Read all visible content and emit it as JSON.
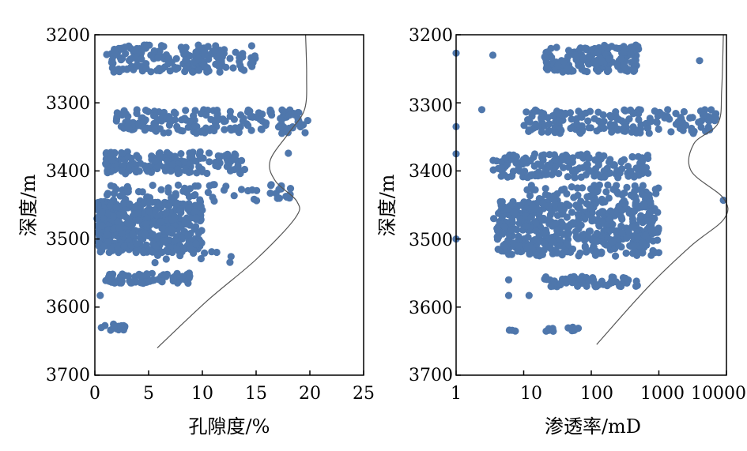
{
  "chart_data": [
    {
      "type": "scatter",
      "xlabel": "孔隙度/%",
      "ylabel": "深度/m",
      "xscale": "linear",
      "xlim": [
        0,
        25
      ],
      "ylim": [
        3700,
        3200
      ],
      "y_inverted": true,
      "xticks": [
        "0",
        "5",
        "10",
        "15",
        "20",
        "25"
      ],
      "yticks": [
        "3200",
        "3300",
        "3400",
        "3500",
        "3600",
        "3700"
      ],
      "grid": false,
      "point_color": "#4f77ac",
      "curve_color": "#555555",
      "clusters": [
        {
          "depth_range": [
            3215,
            3255
          ],
          "x_range": [
            1.5,
            15
          ],
          "density": "high"
        },
        {
          "depth_range": [
            3310,
            3345
          ],
          "x_range": [
            2,
            19.8
          ],
          "density": "high"
        },
        {
          "depth_range": [
            3372,
            3405
          ],
          "x_range": [
            1,
            14
          ],
          "density": "high"
        },
        {
          "depth_range": [
            3420,
            3445
          ],
          "x_range": [
            1,
            19
          ],
          "density": "medium"
        },
        {
          "depth_range": [
            3445,
            3520
          ],
          "x_range": [
            0.3,
            10
          ],
          "density": "very high"
        },
        {
          "depth_range": [
            3518,
            3535
          ],
          "x_range": [
            5,
            13
          ],
          "density": "low"
        },
        {
          "depth_range": [
            3550,
            3565
          ],
          "x_range": [
            1,
            9
          ],
          "density": "medium"
        },
        {
          "depth_range": [
            3625,
            3635
          ],
          "x_range": [
            0.5,
            2.8
          ],
          "density": "low"
        }
      ],
      "outliers": [
        {
          "x": 0.2,
          "y": 3470
        },
        {
          "x": 0.5,
          "y": 3583
        },
        {
          "x": 0.6,
          "y": 3630
        },
        {
          "x": 18,
          "y": 3374
        },
        {
          "x": 19.8,
          "y": 3326
        },
        {
          "x": 1.1,
          "y": 3229
        }
      ],
      "curve": [
        {
          "x": 19.6,
          "y": 3200
        },
        {
          "x": 19.7,
          "y": 3260
        },
        {
          "x": 19.5,
          "y": 3310
        },
        {
          "x": 18.0,
          "y": 3345
        },
        {
          "x": 16.3,
          "y": 3385
        },
        {
          "x": 16.8,
          "y": 3415
        },
        {
          "x": 18.8,
          "y": 3445
        },
        {
          "x": 18.6,
          "y": 3470
        },
        {
          "x": 15.0,
          "y": 3530
        },
        {
          "x": 10.5,
          "y": 3590
        },
        {
          "x": 5.8,
          "y": 3660
        }
      ]
    },
    {
      "type": "scatter",
      "xlabel": "渗透率/mD",
      "ylabel": "深度/m",
      "xscale": "log",
      "xlim": [
        1,
        10000
      ],
      "ylim": [
        3700,
        3200
      ],
      "y_inverted": true,
      "xticks": [
        "1",
        "10",
        "100",
        "1000",
        "10000"
      ],
      "yticks": [
        "3200",
        "3300",
        "3400",
        "3500",
        "3600",
        "3700"
      ],
      "grid": false,
      "point_color": "#4f77ac",
      "curve_color": "#555555",
      "clusters": [
        {
          "depth_range": [
            3215,
            3255
          ],
          "x_range": [
            20,
            500
          ],
          "density": "high"
        },
        {
          "depth_range": [
            3310,
            3345
          ],
          "x_range": [
            10,
            8000
          ],
          "density": "high"
        },
        {
          "depth_range": [
            3375,
            3410
          ],
          "x_range": [
            3.5,
            700
          ],
          "density": "high"
        },
        {
          "depth_range": [
            3420,
            3445
          ],
          "x_range": [
            10,
            1000
          ],
          "density": "medium"
        },
        {
          "depth_range": [
            3445,
            3525
          ],
          "x_range": [
            4,
            1000
          ],
          "density": "very high"
        },
        {
          "depth_range": [
            3555,
            3570
          ],
          "x_range": [
            20,
            500
          ],
          "density": "medium"
        },
        {
          "depth_range": [
            3628,
            3636
          ],
          "x_range": [
            6,
            70
          ],
          "density": "low"
        }
      ],
      "outliers": [
        {
          "x": 1,
          "y": 3227
        },
        {
          "x": 3.5,
          "y": 3230
        },
        {
          "x": 4000,
          "y": 3238
        },
        {
          "x": 1,
          "y": 3335
        },
        {
          "x": 2.4,
          "y": 3310
        },
        {
          "x": 1,
          "y": 3375
        },
        {
          "x": 1,
          "y": 3500
        },
        {
          "x": 3.6,
          "y": 3470
        },
        {
          "x": 6,
          "y": 3560
        },
        {
          "x": 6,
          "y": 3583
        },
        {
          "x": 12,
          "y": 3583
        },
        {
          "x": 9000,
          "y": 3443
        }
      ],
      "curve": [
        {
          "x": 9000,
          "y": 3200
        },
        {
          "x": 8500,
          "y": 3280
        },
        {
          "x": 7500,
          "y": 3330
        },
        {
          "x": 3300,
          "y": 3360
        },
        {
          "x": 3000,
          "y": 3400
        },
        {
          "x": 9000,
          "y": 3440
        },
        {
          "x": 9300,
          "y": 3470
        },
        {
          "x": 3000,
          "y": 3510
        },
        {
          "x": 700,
          "y": 3570
        },
        {
          "x": 120,
          "y": 3655
        }
      ]
    }
  ]
}
